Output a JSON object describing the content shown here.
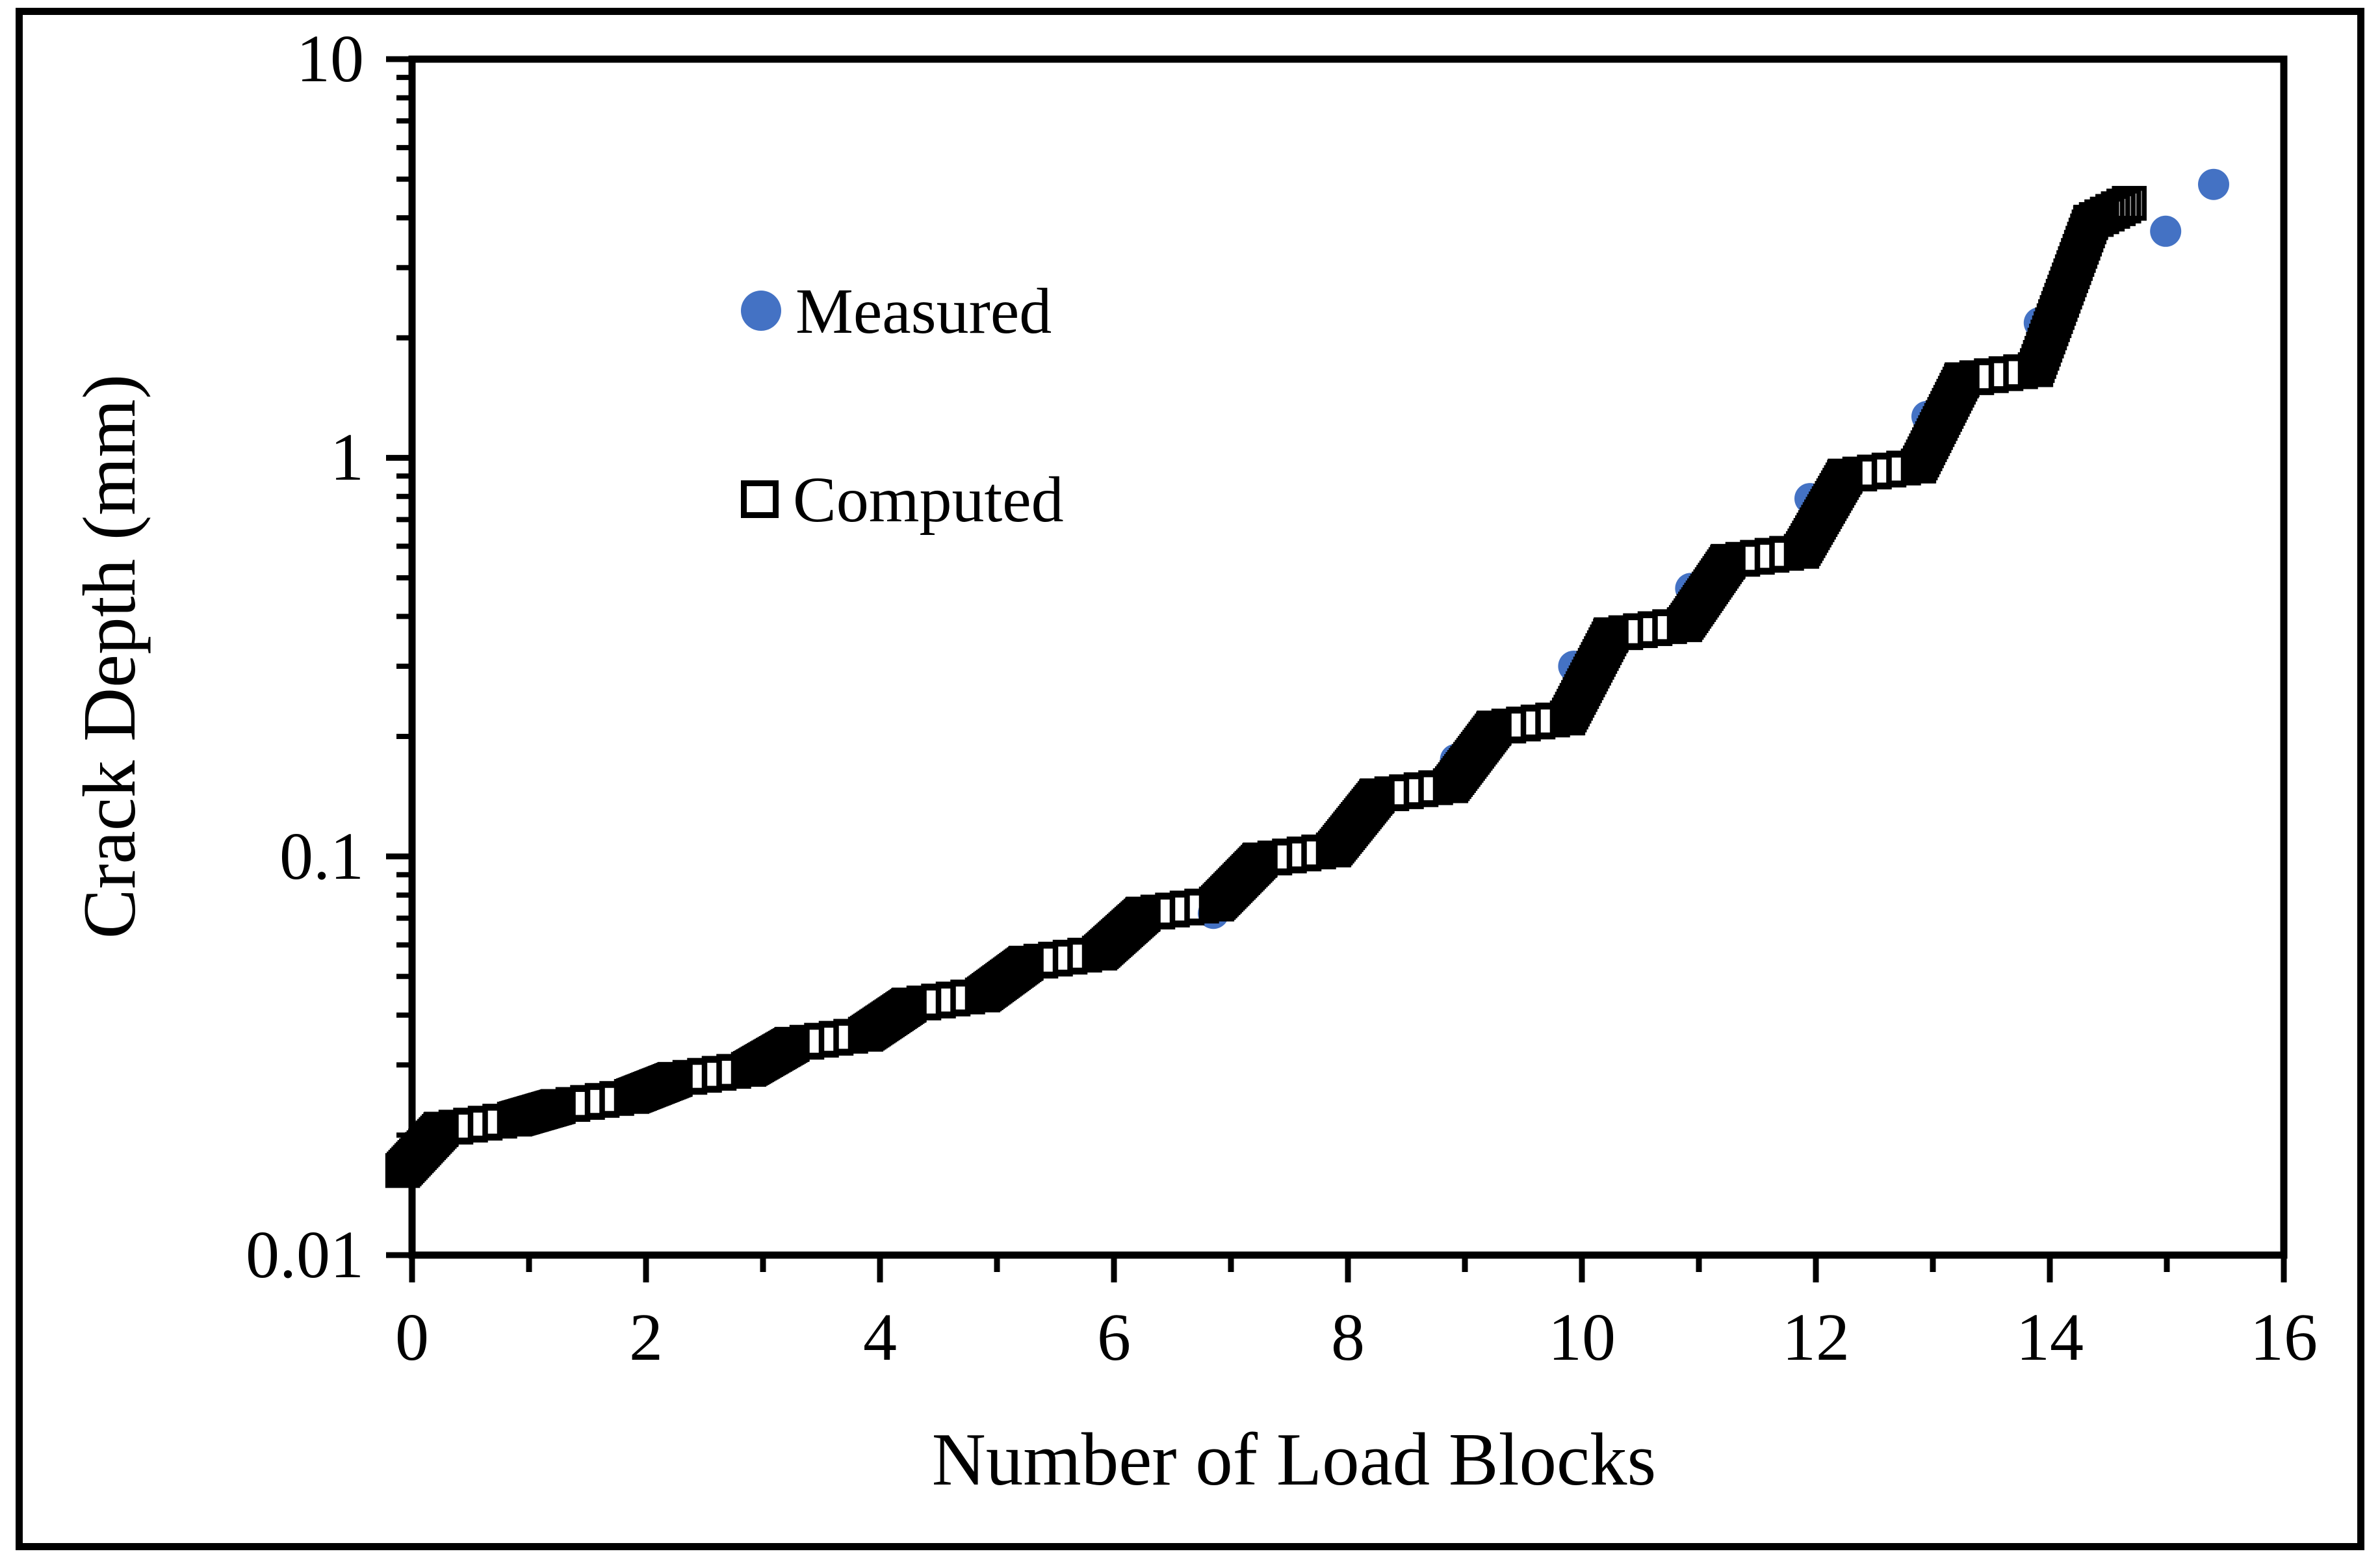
{
  "figure": {
    "background": "#ffffff",
    "frame_color": "#000000"
  },
  "chart_data": {
    "type": "scatter",
    "title": "",
    "xlabel": "Number of Load Blocks",
    "ylabel": "Crack Depth (mm)",
    "xscale": "linear",
    "yscale": "log",
    "xlim": [
      0,
      16
    ],
    "ylim": [
      0.01,
      10
    ],
    "grid": false,
    "x_major_ticks": [
      0,
      2,
      4,
      6,
      8,
      10,
      12,
      14,
      16
    ],
    "x_minor_ticks": [
      1,
      3,
      5,
      7,
      9,
      11,
      13,
      15
    ],
    "y_major_ticks": [
      {
        "value": 10,
        "label": "10"
      },
      {
        "value": 1,
        "label": "1"
      },
      {
        "value": 0.1,
        "label": "0.1"
      },
      {
        "value": 0.01,
        "label": "0.01"
      }
    ],
    "y_minor_multiples": [
      2,
      3,
      4,
      5,
      6,
      7,
      8,
      9
    ],
    "legend": {
      "position": "upper-left-inside",
      "items": [
        {
          "label": "Measured",
          "marker": "filled-circle",
          "color": "#4472C4"
        },
        {
          "label": "Computed",
          "marker": "open-square",
          "color": "#000000"
        }
      ]
    },
    "series": [
      {
        "name": "Measured",
        "marker": "filled-circle",
        "color": "#4472C4",
        "marker_radius_px": 24,
        "points": [
          [
            6.85,
            0.072
          ],
          [
            7.91,
            0.108
          ],
          [
            8.92,
            0.175
          ],
          [
            9.93,
            0.3
          ],
          [
            10.93,
            0.47
          ],
          [
            11.95,
            0.79
          ],
          [
            12.95,
            1.27
          ],
          [
            13.91,
            2.18
          ],
          [
            14.99,
            3.7
          ],
          [
            15.4,
            4.85
          ]
        ]
      },
      {
        "name": "Computed",
        "marker": "open-square",
        "color": "#000000",
        "marker_size_px": 46,
        "marker_stroke_px": 7.5,
        "staircase": {
          "start_block": -0.08,
          "start_value": 0.0163,
          "plateau_levels": [
            0.0207,
            0.0236,
            0.0276,
            0.0338,
            0.0424,
            0.054,
            0.0717,
            0.098,
            0.142,
            0.21,
            0.36,
            0.55,
            0.9,
            1.57
          ],
          "plateau_growth_factor": 1.06,
          "rise_start_offset": -0.12,
          "rise_end_offset": 0.25,
          "plateau_end_offset": 0.88,
          "rise_step": 0.013,
          "plateau_step": 0.125,
          "final_rise": {
            "from_block": 13.88,
            "to_block": 14.35,
            "to_value": 3.9
          },
          "final_plateau": {
            "to_block": 14.68,
            "to_value": 4.35,
            "step": 0.047
          }
        }
      }
    ]
  }
}
